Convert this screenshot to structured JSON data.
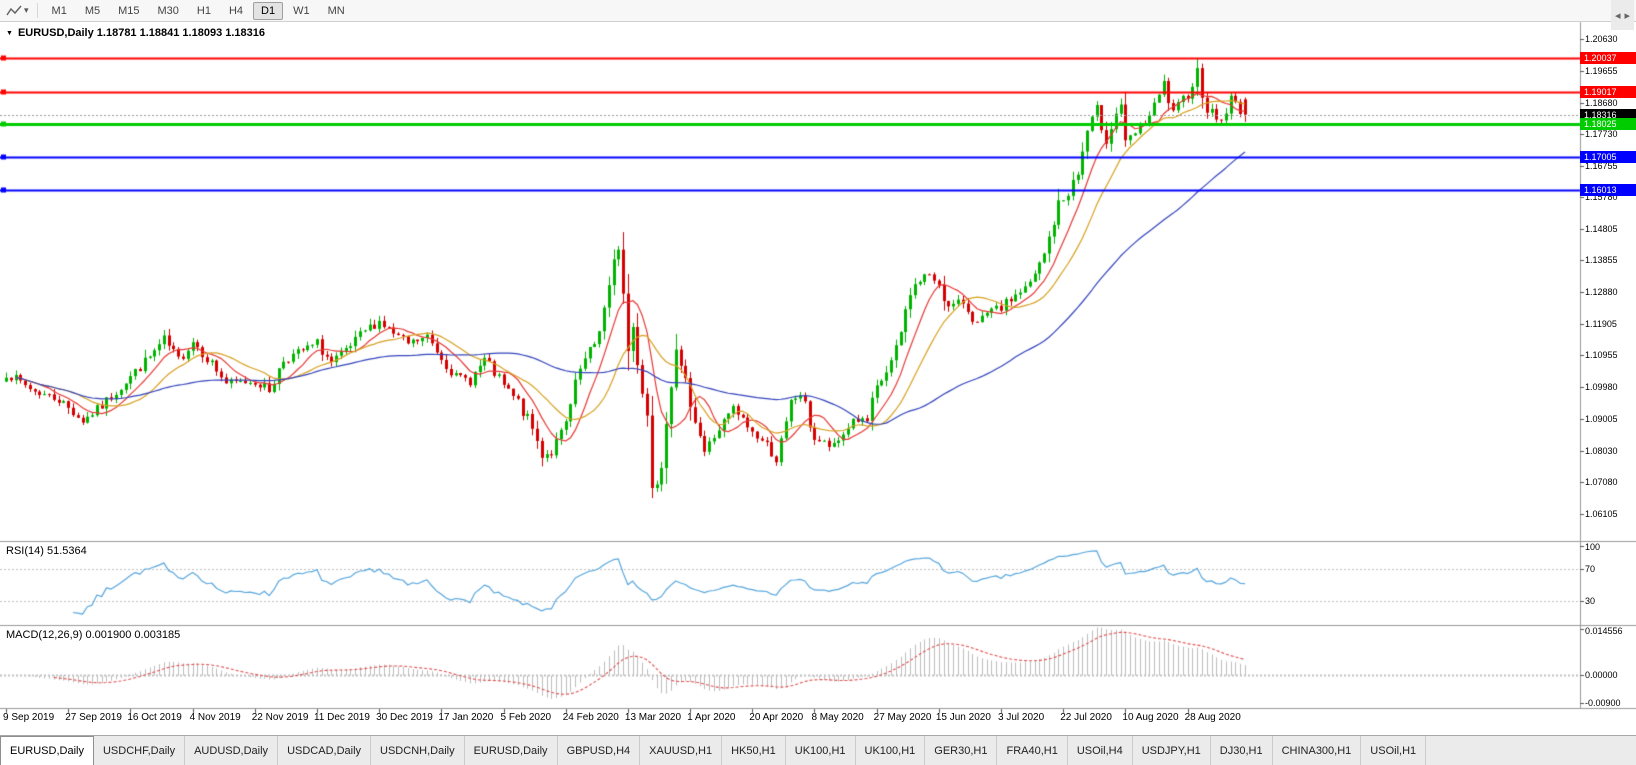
{
  "icons": {
    "collapse": "▼",
    "dropdown": "▾",
    "tab_scroll_left": "◂",
    "tab_scroll_right": "▸"
  },
  "toolbar": {
    "timeframes": [
      "M1",
      "M5",
      "M15",
      "M30",
      "H1",
      "H4",
      "D1",
      "W1",
      "MN"
    ],
    "active_timeframe": "D1"
  },
  "chart_data": {
    "type": "candlestick",
    "symbol": "EURUSD",
    "timeframe": "Daily",
    "title": "EURUSD,Daily 1.18781 1.18841 1.18093 1.18316",
    "ohlc": {
      "open": 1.18781,
      "high": 1.18841,
      "low": 1.18093,
      "close": 1.18316
    },
    "y_axis": {
      "ticks": [
        "1.20630",
        "1.19655",
        "1.18680",
        "1.17730",
        "1.16755",
        "1.15780",
        "1.14805",
        "1.13855",
        "1.12880",
        "1.11905",
        "1.10955",
        "1.09980",
        "1.09005",
        "1.08030",
        "1.07080",
        "1.06105"
      ],
      "max": 1.2115,
      "min": 1.053
    },
    "x_axis": {
      "labels": [
        "9 Sep 2019",
        "27 Sep 2019",
        "16 Oct 2019",
        "4 Nov 2019",
        "22 Nov 2019",
        "11 Dec 2019",
        "30 Dec 2019",
        "17 Jan 2020",
        "5 Feb 2020",
        "24 Feb 2020",
        "13 Mar 2020",
        "1 Apr 2020",
        "20 Apr 2020",
        "8 May 2020",
        "27 May 2020",
        "15 Jun 2020",
        "3 Jul 2020",
        "22 Jul 2020",
        "10 Aug 2020",
        "28 Aug 2020"
      ],
      "label_every": 13
    },
    "candle_count": 260,
    "close_anchors": [
      [
        0,
        1.104
      ],
      [
        6,
        1.0985
      ],
      [
        11,
        1.096
      ],
      [
        16,
        1.0895
      ],
      [
        20,
        1.094
      ],
      [
        26,
        1.103
      ],
      [
        30,
        1.109
      ],
      [
        33,
        1.114
      ],
      [
        36,
        1.108
      ],
      [
        39,
        1.114
      ],
      [
        43,
        1.107
      ],
      [
        46,
        1.101
      ],
      [
        52,
        1.1015
      ],
      [
        55,
        1.099
      ],
      [
        58,
        1.108
      ],
      [
        62,
        1.111
      ],
      [
        65,
        1.113
      ],
      [
        68,
        1.107
      ],
      [
        72,
        1.112
      ],
      [
        75,
        1.117
      ],
      [
        78,
        1.12
      ],
      [
        81,
        1.116
      ],
      [
        84,
        1.113
      ],
      [
        88,
        1.115
      ],
      [
        91,
        1.109
      ],
      [
        94,
        1.103
      ],
      [
        97,
        1.102
      ],
      [
        100,
        1.108
      ],
      [
        104,
        1.1
      ],
      [
        107,
        1.095
      ],
      [
        110,
        1.087
      ],
      [
        112,
        1.079
      ],
      [
        114,
        1.08
      ],
      [
        117,
        1.088
      ],
      [
        120,
        1.105
      ],
      [
        123,
        1.113
      ],
      [
        126,
        1.129
      ],
      [
        128,
        1.144
      ],
      [
        129,
        1.128
      ],
      [
        130,
        1.111
      ],
      [
        131,
        1.118
      ],
      [
        133,
        1.0995
      ],
      [
        134,
        1.0915
      ],
      [
        135,
        1.069
      ],
      [
        136,
        1.072
      ],
      [
        137,
        1.0785
      ],
      [
        139,
        1.103
      ],
      [
        140,
        1.114
      ],
      [
        141,
        1.1045
      ],
      [
        143,
        1.096
      ],
      [
        146,
        1.08
      ],
      [
        149,
        1.087
      ],
      [
        152,
        1.093
      ],
      [
        156,
        1.086
      ],
      [
        159,
        1.082
      ],
      [
        161,
        1.078
      ],
      [
        163,
        1.087
      ],
      [
        164,
        1.095
      ],
      [
        166,
        1.098
      ],
      [
        169,
        1.084
      ],
      [
        173,
        1.081
      ],
      [
        177,
        1.09
      ],
      [
        180,
        1.089
      ],
      [
        182,
        1.099
      ],
      [
        186,
        1.11
      ],
      [
        189,
        1.129
      ],
      [
        192,
        1.134
      ],
      [
        195,
        1.132
      ],
      [
        197,
        1.124
      ],
      [
        200,
        1.126
      ],
      [
        203,
        1.119
      ],
      [
        206,
        1.123
      ],
      [
        208,
        1.124
      ],
      [
        211,
        1.128
      ],
      [
        214,
        1.131
      ],
      [
        217,
        1.14
      ],
      [
        220,
        1.156
      ],
      [
        221,
        1.157
      ],
      [
        224,
        1.165
      ],
      [
        226,
        1.178
      ],
      [
        228,
        1.184
      ],
      [
        230,
        1.176
      ],
      [
        233,
        1.187
      ],
      [
        234,
        1.174
      ],
      [
        237,
        1.179
      ],
      [
        240,
        1.185
      ],
      [
        242,
        1.192
      ],
      [
        244,
        1.183
      ],
      [
        247,
        1.19
      ],
      [
        249,
        1.196
      ],
      [
        251,
        1.185
      ],
      [
        254,
        1.181
      ],
      [
        256,
        1.188
      ],
      [
        259,
        1.18316
      ]
    ],
    "levels": [
      {
        "label": "1.20037",
        "price": 1.20037,
        "color": "#ff0000",
        "width": 2,
        "style": "solid",
        "kind": "resistance"
      },
      {
        "label": "1.19017",
        "price": 1.19017,
        "color": "#ff0000",
        "width": 2,
        "style": "solid",
        "kind": "resistance"
      },
      {
        "label": "1.18316",
        "price": 1.18316,
        "color": "#9a9a9a",
        "badge": "#000000",
        "width": 1,
        "style": "dotted",
        "kind": "current-price"
      },
      {
        "label": "1.18025",
        "price": 1.18025,
        "color": "#00cc00",
        "width": 3,
        "style": "solid",
        "kind": "support"
      },
      {
        "label": "1.17005",
        "price": 1.17005,
        "color": "#0000ff",
        "width": 2,
        "style": "solid",
        "kind": "support"
      },
      {
        "label": "1.16013",
        "price": 1.16013,
        "color": "#0000ff",
        "width": 2,
        "style": "solid",
        "kind": "support"
      }
    ],
    "moving_averages": [
      {
        "period": 8,
        "color": "#e53935",
        "name": "fast-ma"
      },
      {
        "period": 16,
        "color": "#d7a021",
        "name": "mid-ma"
      },
      {
        "period": 50,
        "color": "#3344bb",
        "name": "slow-ma"
      }
    ],
    "colors": {
      "bull": "#00b300",
      "bear": "#d40000",
      "background": "#ffffff",
      "separator": "#999999",
      "tick": "#555555"
    },
    "rsi": {
      "label": "RSI(14) 51.5364",
      "period": 14,
      "value": 51.5364,
      "ticks": [
        "100",
        "70",
        "30"
      ],
      "level_lines": [
        70,
        30
      ],
      "color": "#58a6dd",
      "max": 105,
      "min": 0
    },
    "macd": {
      "label": "MACD(12,26,9) 0.001900 0.003185",
      "fast": 12,
      "slow": 26,
      "signal": 9,
      "values": [
        0.0019,
        0.003185
      ],
      "ticks": [
        "0.014556",
        "0.00000",
        "-0.00900"
      ],
      "max": 0.0155,
      "min": -0.0105,
      "hist_color": "#bdbdbd",
      "signal_color": "#e05050"
    }
  },
  "tabbar": {
    "tabs": [
      {
        "label": "EURUSD,Daily",
        "active": true
      },
      {
        "label": "USDCHF,Daily"
      },
      {
        "label": "AUDUSD,Daily"
      },
      {
        "label": "USDCAD,Daily"
      },
      {
        "label": "USDCNH,Daily"
      },
      {
        "label": "EURUSD,Daily"
      },
      {
        "label": "GBPUSD,H4"
      },
      {
        "label": "XAUUSD,H1"
      },
      {
        "label": "HK50,H1"
      },
      {
        "label": "UK100,H1"
      },
      {
        "label": "UK100,H1"
      },
      {
        "label": "GER30,H1"
      },
      {
        "label": "FRA40,H1"
      },
      {
        "label": "USOil,H4"
      },
      {
        "label": "USDJPY,H1"
      },
      {
        "label": "DJ30,H1"
      },
      {
        "label": "CHINA300,H1"
      },
      {
        "label": "USOil,H1"
      }
    ]
  }
}
